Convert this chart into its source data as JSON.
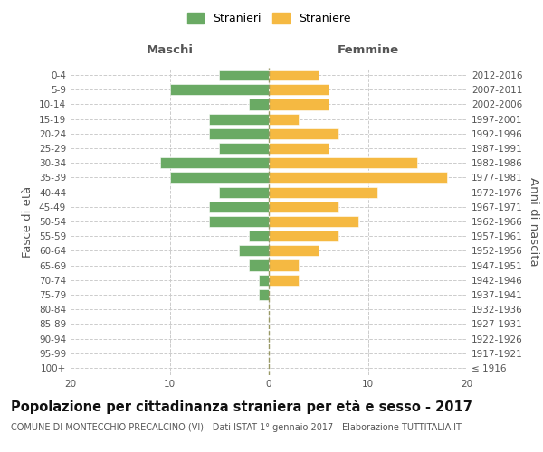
{
  "age_groups": [
    "100+",
    "95-99",
    "90-94",
    "85-89",
    "80-84",
    "75-79",
    "70-74",
    "65-69",
    "60-64",
    "55-59",
    "50-54",
    "45-49",
    "40-44",
    "35-39",
    "30-34",
    "25-29",
    "20-24",
    "15-19",
    "10-14",
    "5-9",
    "0-4"
  ],
  "birth_years": [
    "≤ 1916",
    "1917-1921",
    "1922-1926",
    "1927-1931",
    "1932-1936",
    "1937-1941",
    "1942-1946",
    "1947-1951",
    "1952-1956",
    "1957-1961",
    "1962-1966",
    "1967-1971",
    "1972-1976",
    "1977-1981",
    "1982-1986",
    "1987-1991",
    "1992-1996",
    "1997-2001",
    "2002-2006",
    "2007-2011",
    "2012-2016"
  ],
  "maschi": [
    0,
    0,
    0,
    0,
    0,
    1,
    1,
    2,
    3,
    2,
    6,
    6,
    5,
    10,
    11,
    5,
    6,
    6,
    2,
    10,
    5
  ],
  "femmine": [
    0,
    0,
    0,
    0,
    0,
    0,
    3,
    3,
    5,
    7,
    9,
    7,
    11,
    18,
    15,
    6,
    7,
    3,
    6,
    6,
    5
  ],
  "maschi_color": "#6aaa64",
  "femmine_color": "#f5b942",
  "background_color": "#ffffff",
  "grid_color": "#cccccc",
  "title": "Popolazione per cittadinanza straniera per età e sesso - 2017",
  "subtitle": "COMUNE DI MONTECCHIO PRECALCINO (VI) - Dati ISTAT 1° gennaio 2017 - Elaborazione TUTTITALIA.IT",
  "left_label": "Maschi",
  "right_label": "Femmine",
  "ylabel": "Fasce di età",
  "right_ylabel": "Anni di nascita",
  "legend_maschi": "Stranieri",
  "legend_femmine": "Straniere",
  "xlim": 20,
  "title_fontsize": 10.5,
  "subtitle_fontsize": 7,
  "tick_fontsize": 7.5,
  "label_fontsize": 9.5
}
